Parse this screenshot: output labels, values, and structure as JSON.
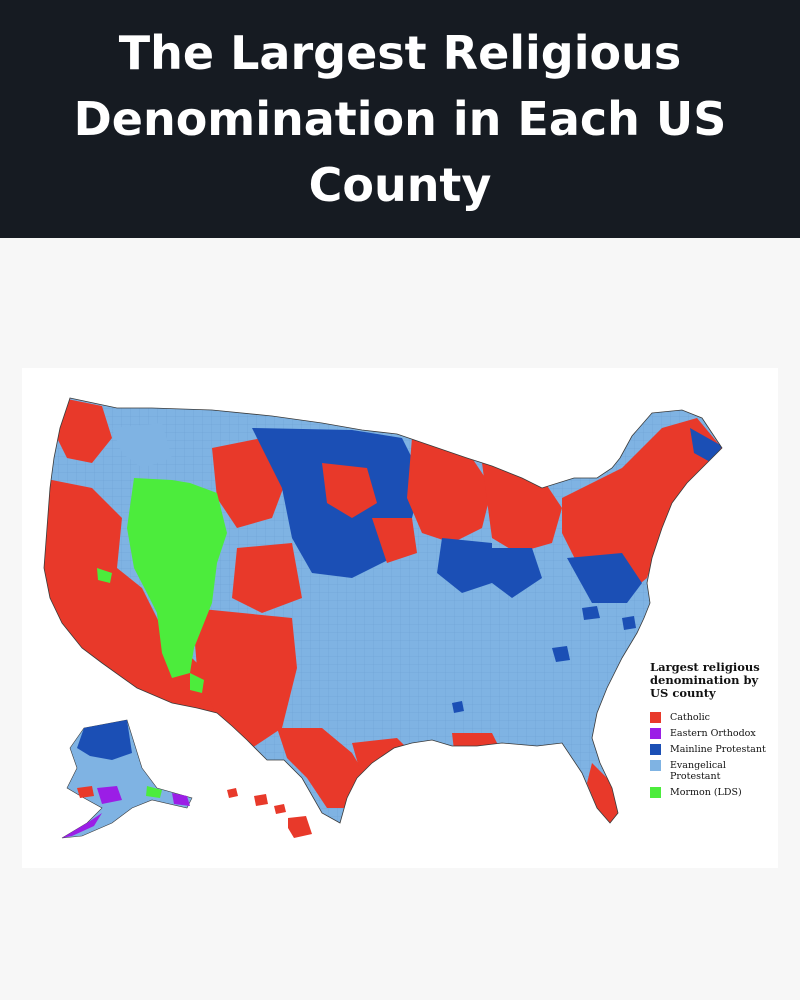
{
  "header": {
    "title": "The Largest Religious Denomination in Each US County"
  },
  "map": {
    "legend": {
      "title": "Largest religious denomination by US county",
      "items": [
        {
          "label": "Catholic",
          "color": "#e8392a"
        },
        {
          "label": "Eastern Orthodox",
          "color": "#9b1ee6"
        },
        {
          "label": "Mainline Protestant",
          "color": "#1b4fb5"
        },
        {
          "label": "Evangelical Protestant",
          "color": "#7fb3e3"
        },
        {
          "label": "Mormon (LDS)",
          "color": "#4cec3c"
        }
      ]
    }
  }
}
